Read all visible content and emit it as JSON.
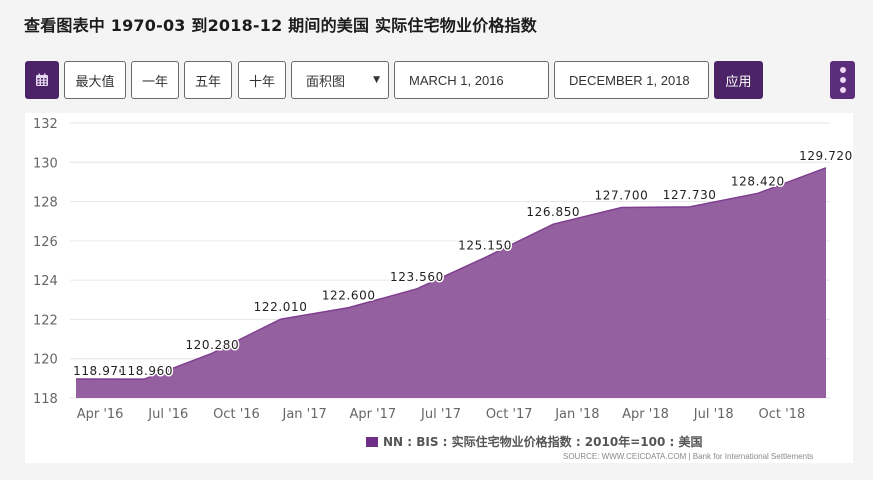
{
  "title": "查看图表中 1970-03 到2018-12 期间的美国 实际住宅物业价格指数",
  "toolbar": {
    "calendar_icon": "calendar-icon",
    "buttons": [
      "最大值",
      "一年",
      "五年",
      "十年"
    ],
    "chart_type": "面积图",
    "chart_type_arrow": "▼",
    "start_date": "MARCH 1, 2016",
    "end_date": "DECEMBER 1, 2018",
    "apply_label": "应用",
    "more_icon": "more-vertical-icon"
  },
  "colors": {
    "area": "#9560a0",
    "area_line": "#7e3f8f",
    "accent": "#4b2366",
    "legend_swatch": "#6e2f86"
  },
  "chart_data": {
    "type": "area",
    "title": "查看图表中 1970-03 到2018-12 期间的美国 实际住宅物业价格指数",
    "x": [
      "Mar 2016",
      "Jun 2016",
      "Sep 2016",
      "Dec 2016",
      "Mar 2017",
      "Jun 2017",
      "Sep 2017",
      "Dec 2017",
      "Mar 2018",
      "Jun 2018",
      "Sep 2018",
      "Dec 2018"
    ],
    "series": [
      {
        "name": "NN : BIS : 实际住宅物业价格指数 : 2010年=100 : 美国",
        "values": [
          118.97,
          118.96,
          120.28,
          122.01,
          122.6,
          123.56,
          125.15,
          126.85,
          127.7,
          127.73,
          128.42,
          129.72
        ],
        "labels": [
          "118.970",
          "118.960",
          "120.280",
          "122.010",
          "122.600",
          "123.560",
          "125.150",
          "126.850",
          "127.700",
          "127.730",
          "128.420",
          "129.720"
        ]
      }
    ],
    "xticks": [
      "Apr '16",
      "Jul '16",
      "Oct '16",
      "Jan '17",
      "Apr '17",
      "Jul '17",
      "Oct '17",
      "Jan '18",
      "Apr '18",
      "Jul '18",
      "Oct '18"
    ],
    "yticks": [
      118,
      120,
      122,
      124,
      126,
      128,
      130,
      132
    ],
    "ylim": [
      118,
      132
    ],
    "xlabel": "",
    "ylabel": "",
    "grid": true,
    "legend_position": "bottom-center",
    "source": "SOURCE: WWW.CEICDATA.COM | Bank for International Settlements"
  }
}
